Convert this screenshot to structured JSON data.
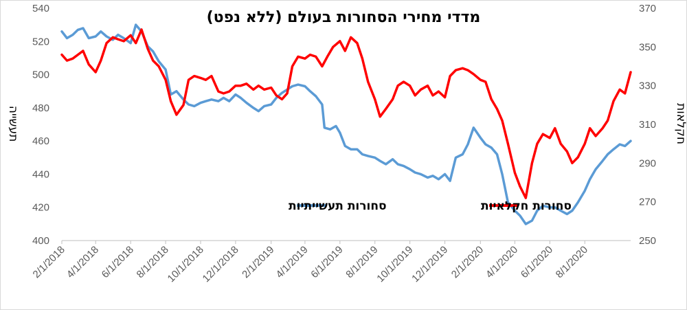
{
  "chart_data": {
    "type": "line",
    "title": "מדדי מחירי הסחורות בעולם (ללא נפט)",
    "ylabel_left": "תעשייה",
    "ylabel_right": "חקלאות",
    "y_left_range": [
      400,
      540
    ],
    "y_left_ticks": [
      "400",
      "420",
      "440",
      "460",
      "480",
      "500",
      "520",
      "540"
    ],
    "y_right_range": [
      250,
      370
    ],
    "y_right_ticks": [
      "250",
      "270",
      "290",
      "310",
      "330",
      "350",
      "370"
    ],
    "x_range": [
      "2018-02-01",
      "2020-10-20"
    ],
    "x_ticks": [
      "2/1/2018",
      "4/1/2018",
      "6/1/2018",
      "8/1/2018",
      "10/1/2018",
      "12/1/2018",
      "2/1/2019",
      "4/1/2019",
      "6/1/2019",
      "8/1/2019",
      "10/1/2019",
      "12/1/2019",
      "2/1/2020",
      "4/1/2020",
      "6/1/2020",
      "8/1/2020"
    ],
    "grid": false,
    "legend_position": "center",
    "series": [
      {
        "name": "סחורות תעשייתיות",
        "axis": "left",
        "color": "#5b9bd5",
        "points": [
          [
            "2018-02-01",
            526
          ],
          [
            "2018-02-10",
            522
          ],
          [
            "2018-02-20",
            524
          ],
          [
            "2018-03-01",
            527
          ],
          [
            "2018-03-10",
            528
          ],
          [
            "2018-03-20",
            522
          ],
          [
            "2018-04-01",
            523
          ],
          [
            "2018-04-10",
            526
          ],
          [
            "2018-04-20",
            523
          ],
          [
            "2018-05-01",
            521
          ],
          [
            "2018-05-10",
            524
          ],
          [
            "2018-05-20",
            522
          ],
          [
            "2018-06-01",
            519
          ],
          [
            "2018-06-10",
            530
          ],
          [
            "2018-06-20",
            526
          ],
          [
            "2018-07-01",
            517
          ],
          [
            "2018-07-10",
            514
          ],
          [
            "2018-07-20",
            508
          ],
          [
            "2018-08-01",
            503
          ],
          [
            "2018-08-10",
            488
          ],
          [
            "2018-08-20",
            490
          ],
          [
            "2018-09-01",
            485
          ],
          [
            "2018-09-10",
            482
          ],
          [
            "2018-09-20",
            481
          ],
          [
            "2018-10-01",
            483
          ],
          [
            "2018-10-10",
            484
          ],
          [
            "2018-10-20",
            485
          ],
          [
            "2018-11-01",
            484
          ],
          [
            "2018-11-10",
            486
          ],
          [
            "2018-11-20",
            484
          ],
          [
            "2018-12-01",
            488
          ],
          [
            "2018-12-10",
            486
          ],
          [
            "2018-12-20",
            483
          ],
          [
            "2019-01-01",
            480
          ],
          [
            "2019-01-10",
            478
          ],
          [
            "2019-01-20",
            481
          ],
          [
            "2019-02-01",
            482
          ],
          [
            "2019-02-10",
            486
          ],
          [
            "2019-02-20",
            489
          ],
          [
            "2019-03-01",
            491
          ],
          [
            "2019-03-10",
            493
          ],
          [
            "2019-03-20",
            494
          ],
          [
            "2019-04-01",
            493
          ],
          [
            "2019-04-10",
            490
          ],
          [
            "2019-04-20",
            487
          ],
          [
            "2019-05-01",
            482
          ],
          [
            "2019-05-05",
            468
          ],
          [
            "2019-05-15",
            467
          ],
          [
            "2019-05-25",
            469
          ],
          [
            "2019-06-01",
            465
          ],
          [
            "2019-06-10",
            457
          ],
          [
            "2019-06-20",
            455
          ],
          [
            "2019-07-01",
            455
          ],
          [
            "2019-07-10",
            452
          ],
          [
            "2019-07-20",
            451
          ],
          [
            "2019-08-01",
            450
          ],
          [
            "2019-08-10",
            448
          ],
          [
            "2019-08-20",
            446
          ],
          [
            "2019-09-01",
            449
          ],
          [
            "2019-09-10",
            446
          ],
          [
            "2019-09-20",
            445
          ],
          [
            "2019-10-01",
            443
          ],
          [
            "2019-10-10",
            441
          ],
          [
            "2019-10-20",
            440
          ],
          [
            "2019-11-01",
            438
          ],
          [
            "2019-11-10",
            439
          ],
          [
            "2019-11-20",
            437
          ],
          [
            "2019-12-01",
            440
          ],
          [
            "2019-12-10",
            436
          ],
          [
            "2019-12-20",
            450
          ],
          [
            "2020-01-01",
            452
          ],
          [
            "2020-01-10",
            458
          ],
          [
            "2020-01-20",
            468
          ],
          [
            "2020-02-01",
            462
          ],
          [
            "2020-02-10",
            458
          ],
          [
            "2020-02-20",
            456
          ],
          [
            "2020-03-01",
            452
          ],
          [
            "2020-03-10",
            440
          ],
          [
            "2020-03-20",
            423
          ],
          [
            "2020-04-01",
            418
          ],
          [
            "2020-04-10",
            415
          ],
          [
            "2020-04-20",
            410
          ],
          [
            "2020-05-01",
            412
          ],
          [
            "2020-05-10",
            418
          ],
          [
            "2020-05-20",
            421
          ],
          [
            "2020-06-01",
            420
          ],
          [
            "2020-06-10",
            420
          ],
          [
            "2020-06-20",
            418
          ],
          [
            "2020-07-01",
            416
          ],
          [
            "2020-07-10",
            418
          ],
          [
            "2020-07-20",
            423
          ],
          [
            "2020-08-01",
            430
          ],
          [
            "2020-08-10",
            437
          ],
          [
            "2020-08-20",
            443
          ],
          [
            "2020-09-01",
            448
          ],
          [
            "2020-09-10",
            452
          ],
          [
            "2020-09-20",
            455
          ],
          [
            "2020-10-01",
            458
          ],
          [
            "2020-10-10",
            457
          ],
          [
            "2020-10-20",
            460
          ]
        ]
      },
      {
        "name": "סחורות חקלאיות",
        "axis": "right",
        "color": "#ff0000",
        "points": [
          [
            "2018-02-01",
            346
          ],
          [
            "2018-02-10",
            343
          ],
          [
            "2018-02-20",
            344
          ],
          [
            "2018-03-01",
            346
          ],
          [
            "2018-03-10",
            348
          ],
          [
            "2018-03-20",
            341
          ],
          [
            "2018-04-01",
            337
          ],
          [
            "2018-04-10",
            343
          ],
          [
            "2018-04-20",
            352
          ],
          [
            "2018-05-01",
            355
          ],
          [
            "2018-05-10",
            354
          ],
          [
            "2018-05-20",
            353
          ],
          [
            "2018-06-01",
            356
          ],
          [
            "2018-06-10",
            352
          ],
          [
            "2018-06-20",
            359
          ],
          [
            "2018-07-01",
            349
          ],
          [
            "2018-07-10",
            343
          ],
          [
            "2018-07-20",
            340
          ],
          [
            "2018-08-01",
            333
          ],
          [
            "2018-08-10",
            322
          ],
          [
            "2018-08-20",
            315
          ],
          [
            "2018-09-01",
            320
          ],
          [
            "2018-09-10",
            333
          ],
          [
            "2018-09-20",
            335
          ],
          [
            "2018-10-01",
            334
          ],
          [
            "2018-10-10",
            333
          ],
          [
            "2018-10-20",
            335
          ],
          [
            "2018-11-01",
            327
          ],
          [
            "2018-11-10",
            326
          ],
          [
            "2018-11-20",
            327
          ],
          [
            "2018-12-01",
            330
          ],
          [
            "2018-12-10",
            330
          ],
          [
            "2018-12-20",
            331
          ],
          [
            "2019-01-01",
            328
          ],
          [
            "2019-01-10",
            330
          ],
          [
            "2019-01-20",
            328
          ],
          [
            "2019-02-01",
            329
          ],
          [
            "2019-02-10",
            325
          ],
          [
            "2019-02-20",
            323
          ],
          [
            "2019-03-01",
            326
          ],
          [
            "2019-03-10",
            340
          ],
          [
            "2019-03-20",
            345
          ],
          [
            "2019-04-01",
            344
          ],
          [
            "2019-04-10",
            346
          ],
          [
            "2019-04-20",
            345
          ],
          [
            "2019-05-01",
            340
          ],
          [
            "2019-05-10",
            345
          ],
          [
            "2019-05-20",
            350
          ],
          [
            "2019-06-01",
            353
          ],
          [
            "2019-06-10",
            348
          ],
          [
            "2019-06-20",
            355
          ],
          [
            "2019-07-01",
            352
          ],
          [
            "2019-07-10",
            344
          ],
          [
            "2019-07-20",
            332
          ],
          [
            "2019-08-01",
            323
          ],
          [
            "2019-08-10",
            314
          ],
          [
            "2019-08-20",
            318
          ],
          [
            "2019-09-01",
            323
          ],
          [
            "2019-09-10",
            330
          ],
          [
            "2019-09-20",
            332
          ],
          [
            "2019-10-01",
            330
          ],
          [
            "2019-10-10",
            325
          ],
          [
            "2019-10-20",
            328
          ],
          [
            "2019-11-01",
            330
          ],
          [
            "2019-11-10",
            325
          ],
          [
            "2019-11-20",
            327
          ],
          [
            "2019-12-01",
            324
          ],
          [
            "2019-12-10",
            335
          ],
          [
            "2019-12-20",
            338
          ],
          [
            "2020-01-01",
            339
          ],
          [
            "2020-01-10",
            338
          ],
          [
            "2020-01-20",
            336
          ],
          [
            "2020-02-01",
            333
          ],
          [
            "2020-02-10",
            332
          ],
          [
            "2020-02-20",
            323
          ],
          [
            "2020-03-01",
            318
          ],
          [
            "2020-03-10",
            312
          ],
          [
            "2020-03-20",
            300
          ],
          [
            "2020-04-01",
            285
          ],
          [
            "2020-04-10",
            278
          ],
          [
            "2020-04-20",
            272
          ],
          [
            "2020-05-01",
            290
          ],
          [
            "2020-05-10",
            300
          ],
          [
            "2020-05-20",
            305
          ],
          [
            "2020-06-01",
            303
          ],
          [
            "2020-06-10",
            308
          ],
          [
            "2020-06-20",
            300
          ],
          [
            "2020-07-01",
            296
          ],
          [
            "2020-07-10",
            290
          ],
          [
            "2020-07-20",
            293
          ],
          [
            "2020-08-01",
            300
          ],
          [
            "2020-08-10",
            308
          ],
          [
            "2020-08-20",
            304
          ],
          [
            "2020-09-01",
            308
          ],
          [
            "2020-09-10",
            312
          ],
          [
            "2020-09-20",
            322
          ],
          [
            "2020-10-01",
            328
          ],
          [
            "2020-10-10",
            326
          ],
          [
            "2020-10-20",
            337
          ]
        ]
      }
    ]
  }
}
